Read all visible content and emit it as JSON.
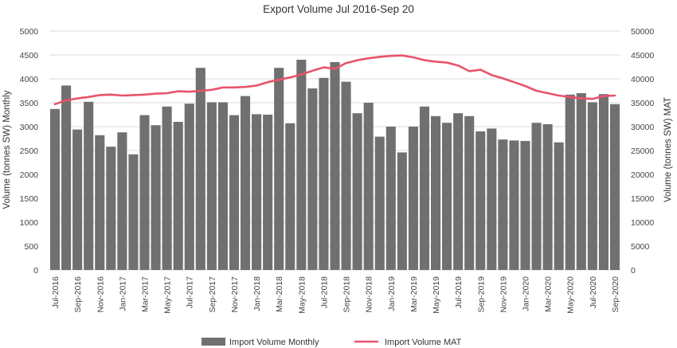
{
  "chart_data": {
    "type": "bar",
    "title": "Export Volume Jul 2016-Sep 20",
    "ylabel": "Volume (tonnes SW) Monthly",
    "y2label": "Volume (tonnes SW) MAT",
    "ylim": [
      0,
      5000
    ],
    "y2lim": [
      0,
      50000
    ],
    "yticks": [
      0,
      500,
      1000,
      1500,
      2000,
      2500,
      3000,
      3500,
      4000,
      4500,
      5000
    ],
    "y2ticks": [
      0,
      5000,
      10000,
      15000,
      20000,
      25000,
      30000,
      35000,
      40000,
      45000,
      50000
    ],
    "grid": true,
    "legend_position": "bottom",
    "months": [
      "Jul-2016",
      "Aug-2016",
      "Sep-2016",
      "Oct-2016",
      "Nov-2016",
      "Dec-2016",
      "Jan-2017",
      "Feb-2017",
      "Mar-2017",
      "Apr-2017",
      "May-2017",
      "Jun-2017",
      "Jul-2017",
      "Aug-2017",
      "Sep-2017",
      "Oct-2017",
      "Nov-2017",
      "Dec-2017",
      "Jan-2018",
      "Feb-2018",
      "Mar-2018",
      "Apr-2018",
      "May-2018",
      "Jun-2018",
      "Jul-2018",
      "Aug-2018",
      "Sep-2018",
      "Oct-2018",
      "Nov-2018",
      "Dec-2018",
      "Jan-2019",
      "Feb-2019",
      "Mar-2019",
      "Apr-2019",
      "May-2019",
      "Jun-2019",
      "Jul-2019",
      "Aug-2019",
      "Sep-2019",
      "Oct-2019",
      "Nov-2019",
      "Dec-2019",
      "Jan-2020",
      "Feb-2020",
      "Mar-2020",
      "Apr-2020",
      "May-2020",
      "Jun-2020",
      "Jul-2020",
      "Aug-2020",
      "Sep-2020"
    ],
    "x_tick_labels": [
      "Jul-2016",
      "",
      "Sep-2016",
      "",
      "Nov-2016",
      "",
      "Jan-2017",
      "",
      "Mar-2017",
      "",
      "May-2017",
      "",
      "Jul-2017",
      "",
      "Sep-2017",
      "",
      "Nov-2017",
      "",
      "Jan-2018",
      "",
      "Mar-2018",
      "",
      "May-2018",
      "",
      "Jul-2018",
      "",
      "Sep-2018",
      "",
      "Nov-2018",
      "",
      "Jan-2019",
      "",
      "Mar-2019",
      "",
      "May-2019",
      "",
      "Jul-2019",
      "",
      "Sep-2019",
      "",
      "Nov-2019",
      "",
      "Jan-2020",
      "",
      "Mar-2020",
      "",
      "May-2020",
      "",
      "Jul-2020",
      "",
      "Sep-2020"
    ],
    "series": [
      {
        "name": "Import Volume Monthly",
        "type": "bar",
        "axis": "left",
        "color": "#707070",
        "values": [
          3370,
          3860,
          2940,
          3520,
          2820,
          2580,
          2880,
          2420,
          3240,
          3030,
          3420,
          3100,
          3480,
          4230,
          3510,
          3510,
          3240,
          3640,
          3260,
          3250,
          4230,
          3070,
          4400,
          3800,
          4020,
          4350,
          3940,
          3280,
          3500,
          2790,
          3000,
          2460,
          3000,
          3420,
          3220,
          3080,
          3280,
          3220,
          2900,
          2960,
          2730,
          2710,
          2700,
          3080,
          3050,
          2670,
          3670,
          3700,
          3510,
          3680,
          3470
        ]
      },
      {
        "name": "Import Volume MAT",
        "type": "line",
        "axis": "right",
        "color": "#e8536b",
        "values": [
          34700,
          35500,
          35900,
          36200,
          36600,
          36700,
          36500,
          36600,
          36700,
          36900,
          37000,
          37400,
          37300,
          37500,
          37700,
          38200,
          38200,
          38300,
          38600,
          39300,
          39800,
          40300,
          40900,
          41700,
          42400,
          42100,
          43300,
          43900,
          44300,
          44600,
          44800,
          44900,
          44500,
          43900,
          43600,
          43400,
          42800,
          41600,
          41900,
          40800,
          40100,
          39300,
          38500,
          37500,
          37000,
          36500,
          36200,
          35900,
          35800,
          36400,
          36500
        ]
      }
    ]
  }
}
